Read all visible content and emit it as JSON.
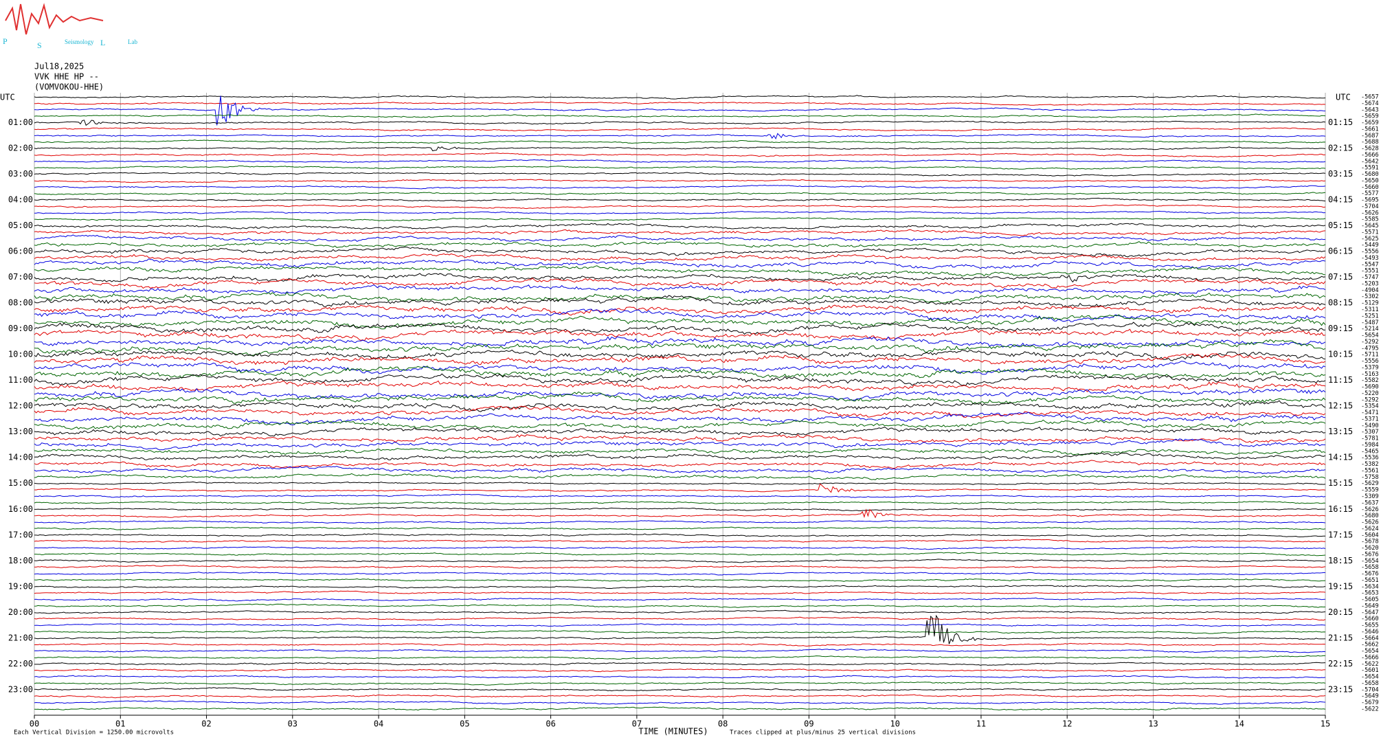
{
  "chart_data": {
    "type": "helicorder",
    "logo": {
      "letters": [
        "P",
        "S",
        "L"
      ],
      "words": [
        "Seismology",
        "Lab"
      ]
    },
    "date": "Jul18,2025",
    "station": "VVK HHE HP --",
    "station_name": "(VOMVOKOU-HHE)",
    "left_header": "UTC",
    "right_header": "UTC",
    "left_times": [
      "01:00",
      "02:00",
      "03:00",
      "04:00",
      "05:00",
      "06:00",
      "07:00",
      "08:00",
      "09:00",
      "10:00",
      "11:00",
      "12:00",
      "13:00",
      "14:00",
      "15:00",
      "16:00",
      "17:00",
      "18:00",
      "19:00",
      "20:00",
      "21:00",
      "22:00",
      "23:00"
    ],
    "right_times": [
      "01:15",
      "02:15",
      "03:15",
      "04:15",
      "05:15",
      "06:15",
      "07:15",
      "08:15",
      "09:15",
      "10:15",
      "11:15",
      "12:15",
      "13:15",
      "14:15",
      "15:15",
      "16:15",
      "17:15",
      "18:15",
      "19:15",
      "20:15",
      "21:15",
      "22:15",
      "23:15"
    ],
    "offsets": [
      -5657,
      -5674,
      -5643,
      -5659,
      -5659,
      -5661,
      -5687,
      -5688,
      -5628,
      -5666,
      -5642,
      -5591,
      -5680,
      -5650,
      -5660,
      -5577,
      -5695,
      -5704,
      -5626,
      -5585,
      -5645,
      -5571,
      -5625,
      -5449,
      -5556,
      -5493,
      -5547,
      -5551,
      -5747,
      -5203,
      -4904,
      -5302,
      -5129,
      -5311,
      -5251,
      -5487,
      -5214,
      -5654,
      -5292,
      -4795,
      -5711,
      -5556,
      -5379,
      -5163,
      -5582,
      -5690,
      -5220,
      -5292,
      -5354,
      -5471,
      -5371,
      -5490,
      -5307,
      -5781,
      -5984,
      -5465,
      -5536,
      -5382,
      -5561,
      -5758,
      -5629,
      -5559,
      -5309,
      -5637,
      -5626,
      -5680,
      -5626,
      -5624,
      -5604,
      -5678,
      -5620,
      -5676,
      -5654,
      -5658,
      -5676,
      -5651,
      -5634,
      -5653,
      -5605,
      -5649,
      -5647,
      -5660,
      -5655,
      -5646,
      -5664,
      -5662,
      -5654,
      -5666,
      -5622,
      -5601,
      -5654,
      -5658,
      -5704,
      -5649,
      -5679,
      -5622
    ],
    "trace_colors": [
      "#000000",
      "#e00000",
      "#0000e0",
      "#006400"
    ],
    "xlim": [
      0,
      15
    ],
    "xticks": [
      {
        "value": 0,
        "label": "00"
      },
      {
        "value": 1,
        "label": "01"
      },
      {
        "value": 2,
        "label": "02"
      },
      {
        "value": 3,
        "label": "03"
      },
      {
        "value": 4,
        "label": "04"
      },
      {
        "value": 5,
        "label": "05"
      },
      {
        "value": 6,
        "label": "06"
      },
      {
        "value": 7,
        "label": "07"
      },
      {
        "value": 8,
        "label": "08"
      },
      {
        "value": 9,
        "label": "09"
      },
      {
        "value": 10,
        "label": "10"
      },
      {
        "value": 11,
        "label": "11"
      },
      {
        "value": 12,
        "label": "12"
      },
      {
        "value": 13,
        "label": "13"
      },
      {
        "value": 14,
        "label": "14"
      },
      {
        "value": 15,
        "label": "15"
      }
    ],
    "xlabel": "TIME (MINUTES)",
    "clip_note": "Traces clipped at plus/minus 25 vertical divisions",
    "scale_note": "Each Vertical Division = 1250.00 microvolts",
    "grid": true
  }
}
